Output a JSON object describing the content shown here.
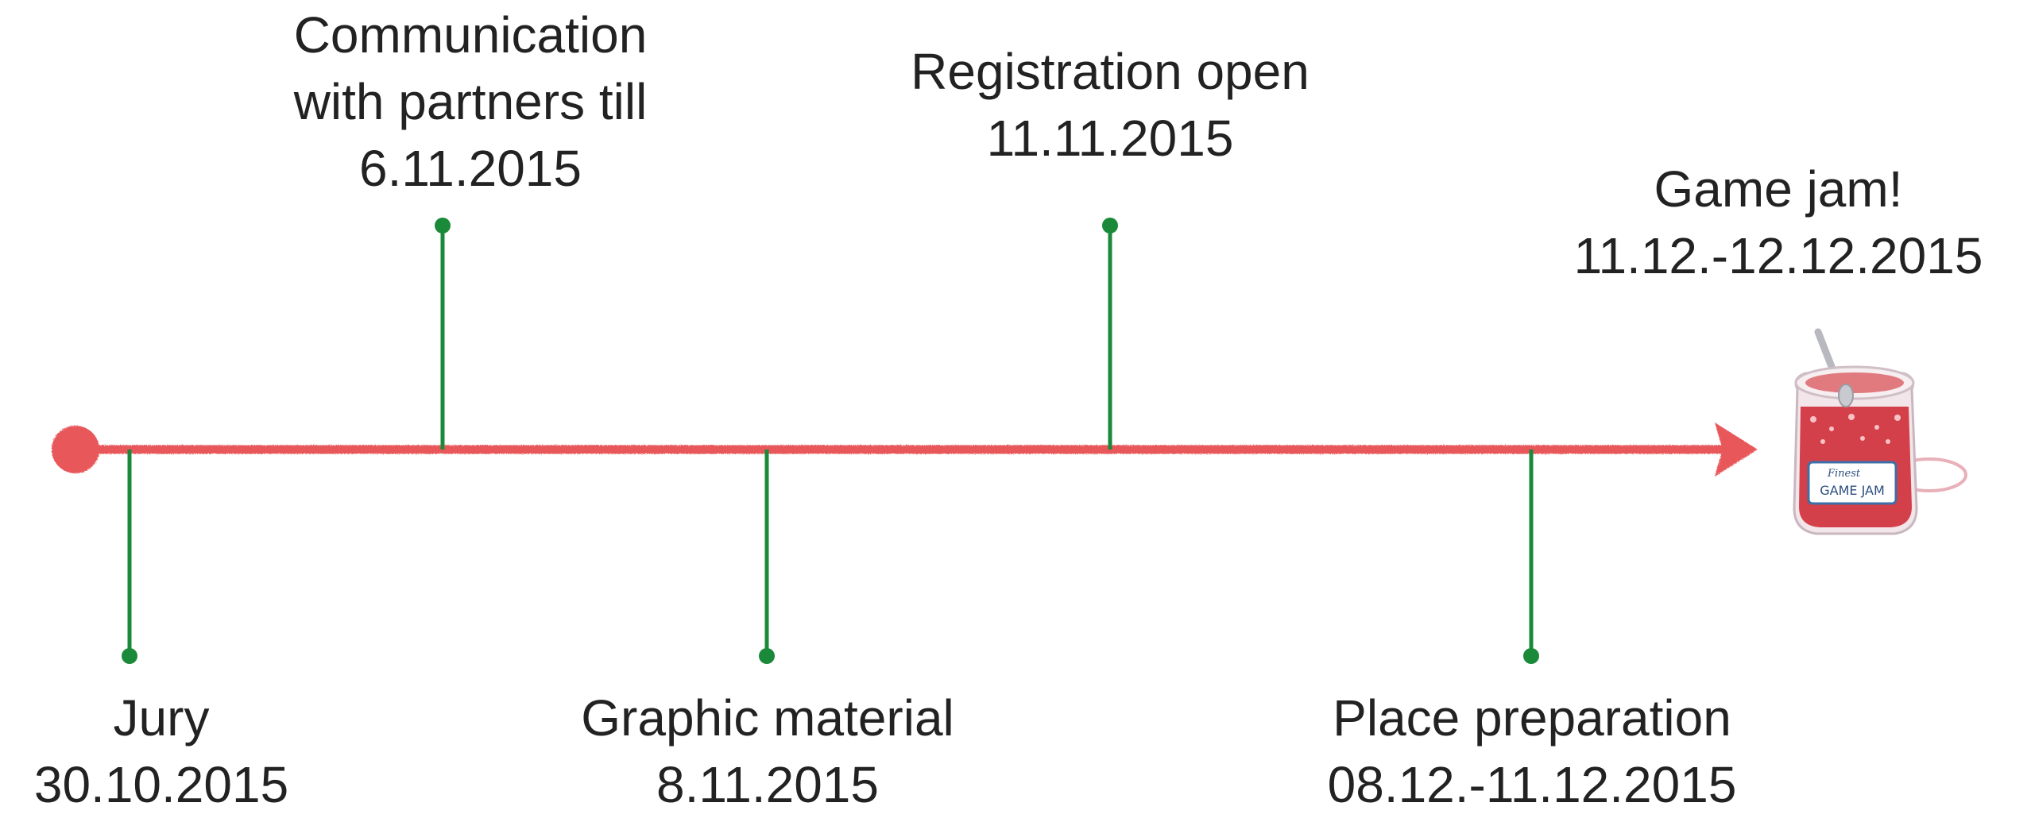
{
  "timeline": {
    "line_color": "#e8585a",
    "marker_color": "#1a8a3a",
    "events": [
      {
        "id": "jury",
        "lines": [
          "Jury",
          "30.10.2015"
        ]
      },
      {
        "id": "communication",
        "lines": [
          "Communication",
          "with partners till",
          "6.11.2015"
        ]
      },
      {
        "id": "graphic",
        "lines": [
          "Graphic material",
          "8.11.2015"
        ]
      },
      {
        "id": "registration",
        "lines": [
          "Registration open",
          "11.11.2015"
        ]
      },
      {
        "id": "place",
        "lines": [
          "Place preparation",
          "08.12.-11.12.2015"
        ]
      },
      {
        "id": "gamejam",
        "lines": [
          "Game jam!",
          "11.12.-12.12.2015"
        ]
      }
    ]
  },
  "jar": {
    "icon": "jam-jar-icon",
    "label_small": "Finest",
    "label_main": "GAME JAM",
    "jam_color": "#d4404a",
    "lid_color": "#e07a7f"
  }
}
